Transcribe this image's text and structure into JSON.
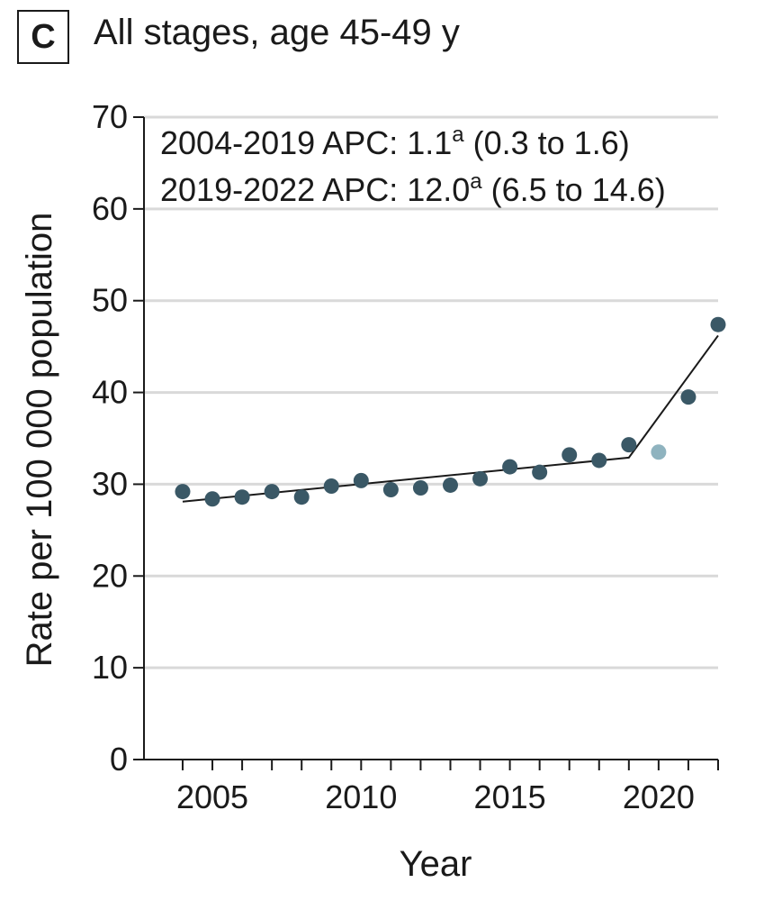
{
  "panel": {
    "letter": "C",
    "title": "All stages, age 45-49 y"
  },
  "chart_data": {
    "type": "scatter",
    "title": "All stages, age 45-49 y",
    "xlabel": "Year",
    "ylabel": "Rate per 100 000 population",
    "xlim": [
      2002.7,
      2022
    ],
    "ylim": [
      0,
      70
    ],
    "x_ticks": [
      2005,
      2010,
      2015,
      2020
    ],
    "x_minor_ticks": [
      2004,
      2005,
      2006,
      2007,
      2008,
      2009,
      2010,
      2011,
      2012,
      2013,
      2014,
      2015,
      2016,
      2017,
      2018,
      2019,
      2020,
      2021,
      2022
    ],
    "y_ticks": [
      0,
      10,
      20,
      30,
      40,
      50,
      60,
      70
    ],
    "grid": "horizontal",
    "point_color": "#3a5866",
    "highlight_color": "#8fb3bf",
    "series": [
      {
        "x": [
          2004,
          2005,
          2006,
          2007,
          2008,
          2009,
          2010,
          2011,
          2012,
          2013,
          2014,
          2015,
          2016,
          2017,
          2018,
          2019,
          2020,
          2021,
          2022
        ],
        "values": [
          29.2,
          28.4,
          28.6,
          29.2,
          28.6,
          29.8,
          30.4,
          29.4,
          29.6,
          29.9,
          30.6,
          31.9,
          31.3,
          33.2,
          32.6,
          34.3,
          33.5,
          39.5,
          47.4
        ],
        "highlight": [
          false,
          false,
          false,
          false,
          false,
          false,
          false,
          false,
          false,
          false,
          false,
          false,
          false,
          false,
          false,
          false,
          true,
          false,
          false
        ]
      }
    ],
    "trend": {
      "x": [
        2004,
        2019,
        2022
      ],
      "y": [
        28.1,
        32.9,
        46.2
      ]
    },
    "annotations": [
      {
        "prefix": "2004-2019 APC: 1.1",
        "sup": "a",
        "suffix": " (0.3 to 1.6)"
      },
      {
        "prefix": "2019-2022 APC: 12.0",
        "sup": "a",
        "suffix": " (6.5 to 14.6)"
      }
    ]
  }
}
